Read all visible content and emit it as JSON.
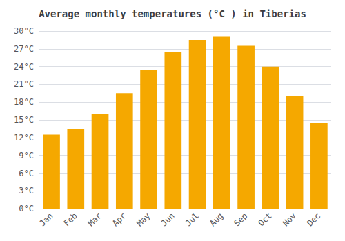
{
  "chart_data": {
    "type": "bar",
    "title": "Average monthly temperatures (°C ) in Tiberias",
    "categories": [
      "Jan",
      "Feb",
      "Mar",
      "Apr",
      "May",
      "Jun",
      "Jul",
      "Aug",
      "Sep",
      "Oct",
      "Nov",
      "Dec"
    ],
    "values": [
      12.5,
      13.5,
      16.0,
      19.5,
      23.5,
      26.5,
      28.5,
      29.0,
      27.5,
      24.0,
      19.0,
      14.5
    ],
    "color": "#F5A800",
    "ylim": [
      0,
      30
    ],
    "yticks": [
      {
        "value": 0,
        "label": "0°C"
      },
      {
        "value": 3,
        "label": "3°C"
      },
      {
        "value": 6,
        "label": "6°C"
      },
      {
        "value": 9,
        "label": "9°C"
      },
      {
        "value": 12,
        "label": "12°C"
      },
      {
        "value": 15,
        "label": "15°C"
      },
      {
        "value": 18,
        "label": "18°C"
      },
      {
        "value": 21,
        "label": "21°C"
      },
      {
        "value": 24,
        "label": "24°C"
      },
      {
        "value": 27,
        "label": "27°C"
      },
      {
        "value": 30,
        "label": "30°C"
      }
    ],
    "grid": true
  }
}
